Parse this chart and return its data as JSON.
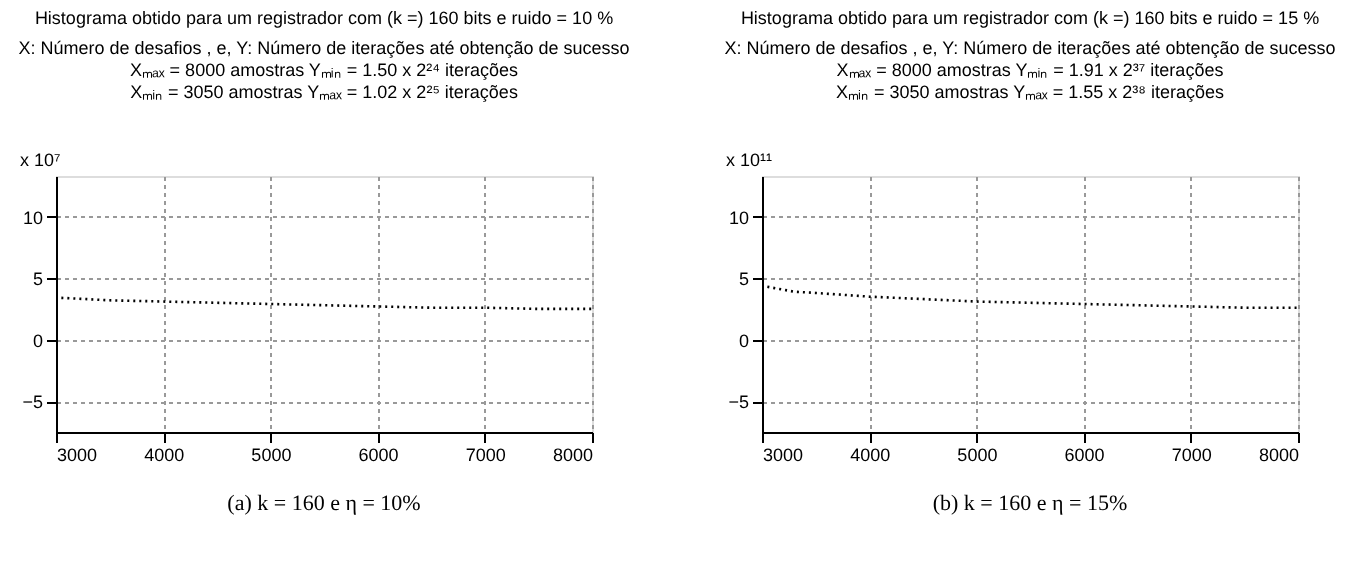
{
  "chart_data": [
    {
      "type": "line",
      "title": "Histograma obtido para um registrador com (k =) 160 bits e ruido = 10 %",
      "subtitle": "X: Número de desafios , e, Y: Número de iterações até obtenção de sucesso",
      "annotations": [
        "Xₘₐₓ =   8000 amostras   Yₘᵢₙ = 1.50 x 2²⁴ iterações",
        "Xₘᵢₙ =   3050 amostras   Yₘₐₓ = 1.02 x 2²⁵ iterações",
        "x 10⁷",
        "(a) k = 160 e η = 10%"
      ],
      "x": [
        3050,
        3500,
        4000,
        4500,
        5000,
        5500,
        6000,
        6500,
        7000,
        7500,
        8000
      ],
      "series": [
        {
          "color": "#000000",
          "values": [
            3.4,
            3.2,
            3.1,
            3.0,
            2.9,
            2.8,
            2.7,
            2.6,
            2.6,
            2.5,
            2.5
          ]
        }
      ],
      "xlim": [
        3000,
        8000
      ],
      "xticks": [
        3000,
        4000,
        5000,
        6000,
        7000,
        8000
      ],
      "ylim": [
        -7.5,
        13.3
      ],
      "yticks": [
        -5,
        0,
        5,
        10
      ],
      "grid": true,
      "line_style": "dotted"
    },
    {
      "type": "line",
      "title": "Histograma obtido para um registrador com (k =) 160 bits e ruido = 15 %",
      "subtitle": "X: Número de desafios , e, Y: Número de iterações até obtenção de sucesso",
      "annotations": [
        "Xₘₐₓ =   8000 amostras   Yₘᵢₙ = 1.91 x 2³⁷ iterações",
        "Xₘᵢₙ =   3050 amostras   Yₘₐₓ = 1.55 x 2³⁸ iterações",
        "x 10¹¹",
        "(b) k = 160 e η = 15%"
      ],
      "x": [
        3050,
        3300,
        3500,
        4000,
        4500,
        5000,
        5500,
        6000,
        6500,
        7000,
        7500,
        8000
      ],
      "series": [
        {
          "color": "#000000",
          "values": [
            4.3,
            3.9,
            3.8,
            3.5,
            3.3,
            3.1,
            3.0,
            2.9,
            2.8,
            2.7,
            2.6,
            2.6
          ]
        }
      ],
      "xlim": [
        3000,
        8000
      ],
      "xticks": [
        3000,
        4000,
        5000,
        6000,
        7000,
        8000
      ],
      "ylim": [
        -7.5,
        13.3
      ],
      "yticks": [
        -5,
        0,
        5,
        10
      ],
      "grid": true,
      "line_style": "dotted"
    }
  ]
}
